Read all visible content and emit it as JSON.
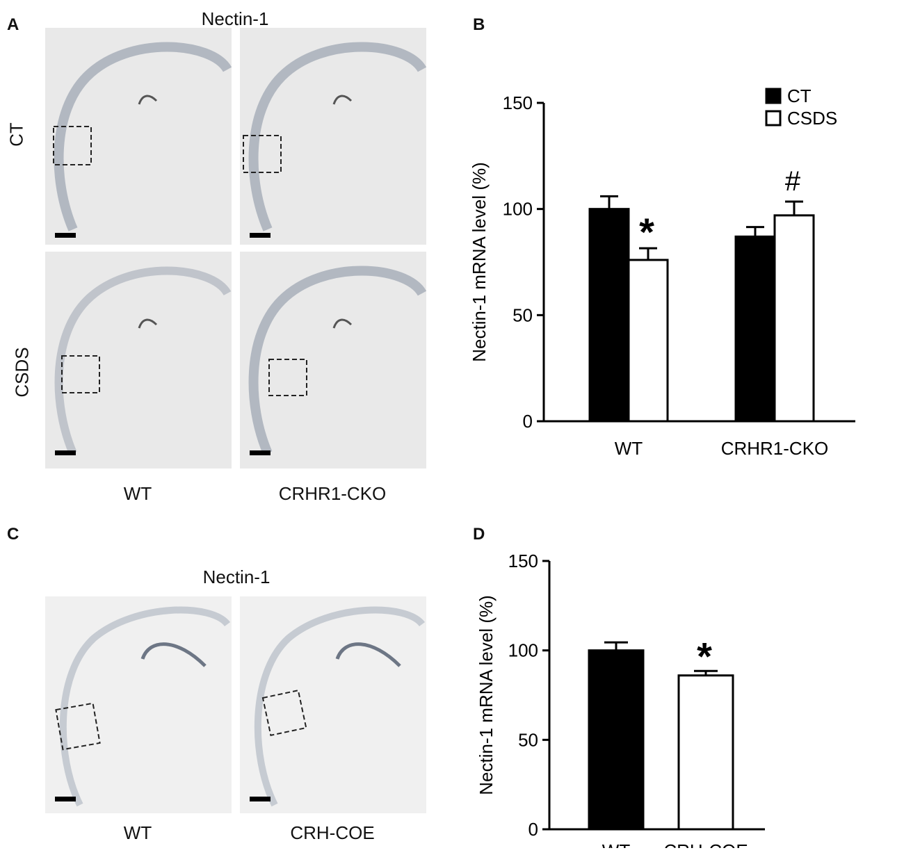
{
  "panelA": {
    "letter": "A",
    "title": "Nectin-1",
    "row_labels": [
      "CT",
      "CSDS"
    ],
    "col_labels": [
      "WT",
      "CRHR1-CKO"
    ]
  },
  "panelB": {
    "letter": "B"
  },
  "panelC": {
    "letter": "C",
    "title": "Nectin-1",
    "col_labels": [
      "WT",
      "CRH-COE"
    ]
  },
  "panelD": {
    "letter": "D"
  },
  "chart_data": [
    {
      "type": "bar",
      "categories": [
        "WT",
        "CRHR1-CKO"
      ],
      "series": [
        {
          "name": "CT",
          "values": [
            100,
            87
          ],
          "errors": [
            6,
            4.5
          ],
          "fill": "#000000"
        },
        {
          "name": "CSDS",
          "values": [
            76,
            97
          ],
          "errors": [
            5.5,
            6.5
          ],
          "fill": "#ffffff"
        }
      ],
      "annotations": [
        {
          "category": "WT",
          "series": "CSDS",
          "text": "*"
        },
        {
          "category": "CRHR1-CKO",
          "series": "CSDS",
          "text": "#"
        }
      ],
      "xlabel": "",
      "ylabel": "Nectin-1 mRNA level (%)",
      "ylim": [
        0,
        150
      ],
      "yticks": [
        0,
        50,
        100,
        150
      ],
      "legend": "top-right"
    },
    {
      "type": "bar",
      "categories": [
        "WT",
        "CRH-COE"
      ],
      "values": [
        100,
        86
      ],
      "errors": [
        4.5,
        2.5
      ],
      "fills": [
        "#000000",
        "#ffffff"
      ],
      "annotations": [
        {
          "category": "CRH-COE",
          "text": "*"
        }
      ],
      "xlabel": "",
      "ylabel": "Nectin-1 mRNA level (%)",
      "ylim": [
        0,
        150
      ],
      "yticks": [
        0,
        50,
        100,
        150
      ]
    }
  ]
}
